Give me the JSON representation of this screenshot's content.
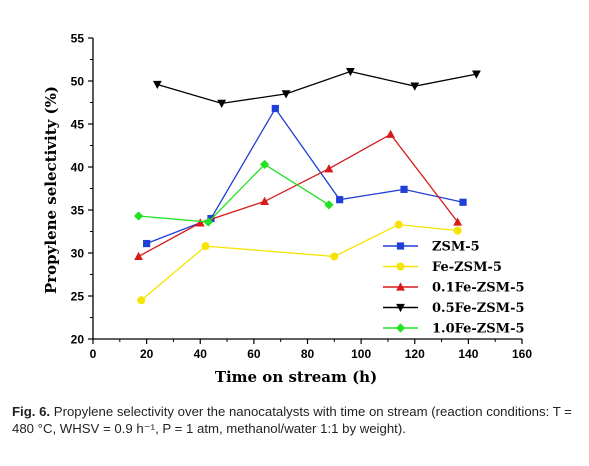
{
  "chart_data": {
    "type": "line",
    "xlabel": "Time on stream (h)",
    "ylabel": "Propylene selectivity (%)",
    "xlim": [
      0,
      160
    ],
    "ylim": [
      20,
      55
    ],
    "xticks": [
      0,
      20,
      40,
      60,
      80,
      100,
      120,
      140,
      160
    ],
    "yticks": [
      20,
      25,
      30,
      35,
      40,
      45,
      50,
      55
    ],
    "grid": false,
    "legend_position": "lower-right",
    "series": [
      {
        "name": "ZSM-5",
        "color": "#1f3fd6",
        "marker": "square",
        "x": [
          20,
          44,
          68,
          92,
          116,
          138
        ],
        "y": [
          31.1,
          34.0,
          46.8,
          36.2,
          37.4,
          35.9
        ]
      },
      {
        "name": "Fe-ZSM-5",
        "color": "#f5e400",
        "marker": "circle",
        "x": [
          18,
          42,
          90,
          114,
          136
        ],
        "y": [
          24.5,
          30.8,
          29.6,
          33.3,
          32.6
        ]
      },
      {
        "name": "0.1Fe-ZSM-5",
        "color": "#d71a1a",
        "marker": "triangle-up",
        "x": [
          17,
          40,
          64,
          88,
          111,
          136
        ],
        "y": [
          29.6,
          33.5,
          36.0,
          39.8,
          43.8,
          33.6
        ]
      },
      {
        "name": "0.5Fe-ZSM-5",
        "color": "#000000",
        "marker": "triangle-down",
        "x": [
          24,
          48,
          72,
          96,
          120,
          143
        ],
        "y": [
          49.6,
          47.4,
          48.5,
          51.1,
          49.4,
          50.8
        ]
      },
      {
        "name": "1.0Fe-ZSM-5",
        "color": "#22e022",
        "marker": "diamond",
        "x": [
          17,
          43,
          64,
          88
        ],
        "y": [
          34.3,
          33.6,
          40.3,
          35.6
        ]
      }
    ]
  },
  "caption": {
    "label": "Fig. 6.",
    "text": " Propylene selectivity over the nanocatalysts with time on stream (reaction conditions: T = 480 °C, WHSV = 0.9 h⁻¹, P = 1 atm, methanol/water 1:1 by weight)."
  }
}
